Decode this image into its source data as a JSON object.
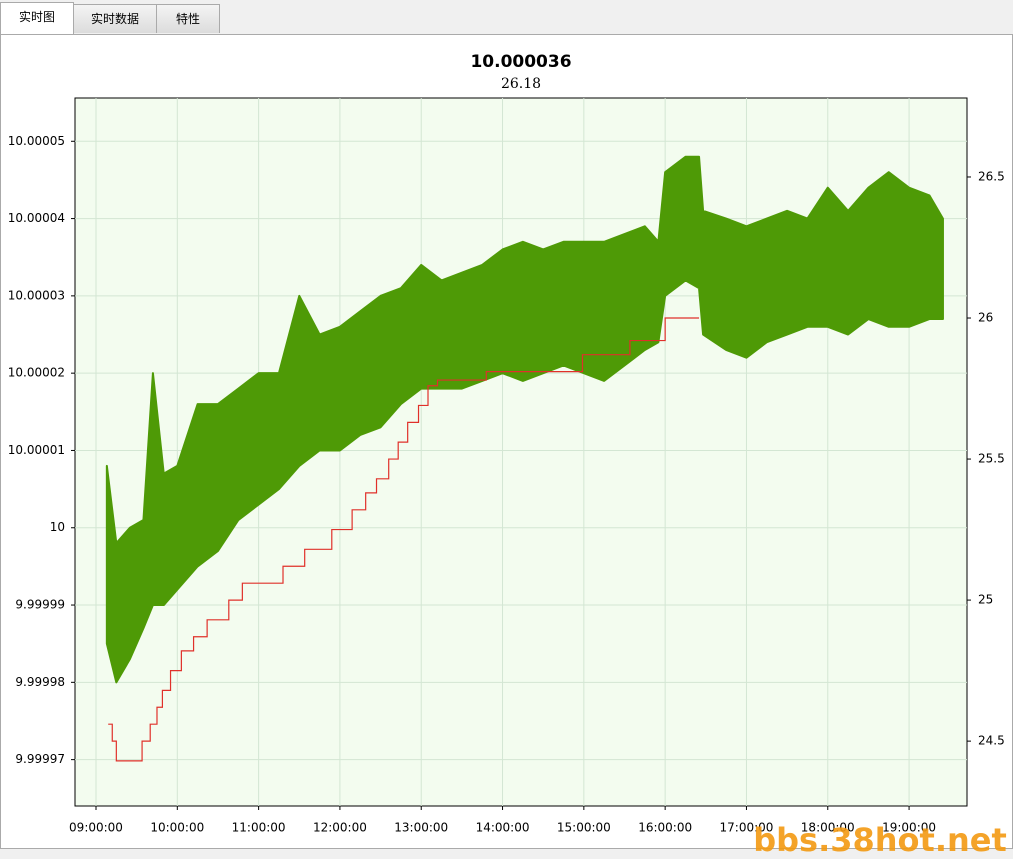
{
  "tabs": [
    "实时图",
    "实时数据",
    "特性"
  ],
  "watermark": "bbs.38hot.net",
  "chart_data": {
    "type": "band-step",
    "title": "10.000036",
    "subtitle": "26.18",
    "xlim": [
      "08:44:30",
      "19:42:45"
    ],
    "xticks": [
      "09:00:00",
      "10:00:00",
      "11:00:00",
      "12:00:00",
      "13:00:00",
      "14:00:00",
      "15:00:00",
      "16:00:00",
      "17:00:00",
      "18:00:00",
      "19:00:00"
    ],
    "ylim": [
      9.999964,
      10.0000556
    ],
    "yticks": [
      9.99997,
      9.99998,
      9.99999,
      10,
      10.00001,
      10.00002,
      10.00003,
      10.00004,
      10.00005
    ],
    "y2lim": [
      24.27,
      26.78
    ],
    "y2ticks": [
      24.5,
      25,
      25.5,
      26,
      26.5
    ],
    "grid": true,
    "series": [
      {
        "kind": "band",
        "color": "#4e9a06",
        "x": [
          "09:08:00",
          "09:15:00",
          "09:25:00",
          "09:35:00",
          "09:42:00",
          "09:50:00",
          "10:00:00",
          "10:15:00",
          "10:30:00",
          "10:45:00",
          "11:00:00",
          "11:15:00",
          "11:30:00",
          "11:45:00",
          "12:00:00",
          "12:15:00",
          "12:30:00",
          "12:45:00",
          "13:00:00",
          "13:15:00",
          "13:30:00",
          "13:45:00",
          "14:00:00",
          "14:15:00",
          "14:30:00",
          "14:45:00",
          "15:00:00",
          "15:15:00",
          "15:30:00",
          "15:45:00",
          "15:55:00",
          "16:00:00",
          "16:15:00",
          "16:25:00",
          "16:28:00",
          "16:45:00",
          "17:00:00",
          "17:15:00",
          "17:30:00",
          "17:45:00",
          "18:00:00",
          "18:15:00",
          "18:30:00",
          "18:45:00",
          "19:00:00",
          "19:15:00",
          "19:25:00"
        ],
        "high": [
          10.000008,
          9.999998,
          10.0,
          10.000001,
          10.00002,
          10.000007,
          10.000008,
          10.000016,
          10.000016,
          10.000018,
          10.00002,
          10.00002,
          10.00003,
          10.000025,
          10.000026,
          10.000028,
          10.00003,
          10.000031,
          10.000034,
          10.000032,
          10.000033,
          10.000034,
          10.000036,
          10.000037,
          10.000036,
          10.000037,
          10.000037,
          10.000037,
          10.000038,
          10.000039,
          10.000037,
          10.000046,
          10.000048,
          10.000048,
          10.000041,
          10.00004,
          10.000039,
          10.00004,
          10.000041,
          10.00004,
          10.000044,
          10.000041,
          10.000044,
          10.000046,
          10.000044,
          10.000043,
          10.00004
        ],
        "low": [
          9.999985,
          9.99998,
          9.999983,
          9.999987,
          9.99999,
          9.99999,
          9.999992,
          9.999995,
          9.999997,
          10.000001,
          10.000003,
          10.000005,
          10.000008,
          10.00001,
          10.00001,
          10.000012,
          10.000013,
          10.000016,
          10.000018,
          10.000018,
          10.000018,
          10.000019,
          10.00002,
          10.000019,
          10.00002,
          10.000021,
          10.00002,
          10.000019,
          10.000021,
          10.000023,
          10.000024,
          10.00003,
          10.000032,
          10.000031,
          10.000025,
          10.000023,
          10.000022,
          10.000024,
          10.000025,
          10.000026,
          10.000026,
          10.000025,
          10.000027,
          10.000026,
          10.000026,
          10.000027,
          10.000027
        ]
      },
      {
        "kind": "step",
        "color": "#e0302a",
        "axis": "y2",
        "x": [
          "09:09:00",
          "09:12:00",
          "09:15:00",
          "09:34:00",
          "09:40:00",
          "09:45:00",
          "09:49:00",
          "09:55:00",
          "10:03:00",
          "10:12:00",
          "10:22:00",
          "10:38:00",
          "10:48:00",
          "11:18:00",
          "11:34:00",
          "11:54:00",
          "12:09:00",
          "12:19:00",
          "12:27:00",
          "12:36:00",
          "12:43:00",
          "12:50:00",
          "12:58:00",
          "13:05:00",
          "13:12:00",
          "13:48:00",
          "14:59:00",
          "15:34:00",
          "16:00:00",
          "16:25:00"
        ],
        "values": [
          24.56,
          24.5,
          24.43,
          24.5,
          24.56,
          24.62,
          24.68,
          24.75,
          24.82,
          24.87,
          24.93,
          25.0,
          25.06,
          25.12,
          25.18,
          25.25,
          25.32,
          25.38,
          25.43,
          25.5,
          25.56,
          25.63,
          25.69,
          25.76,
          25.78,
          25.81,
          25.87,
          25.92,
          26.0,
          26.0
        ]
      }
    ]
  }
}
